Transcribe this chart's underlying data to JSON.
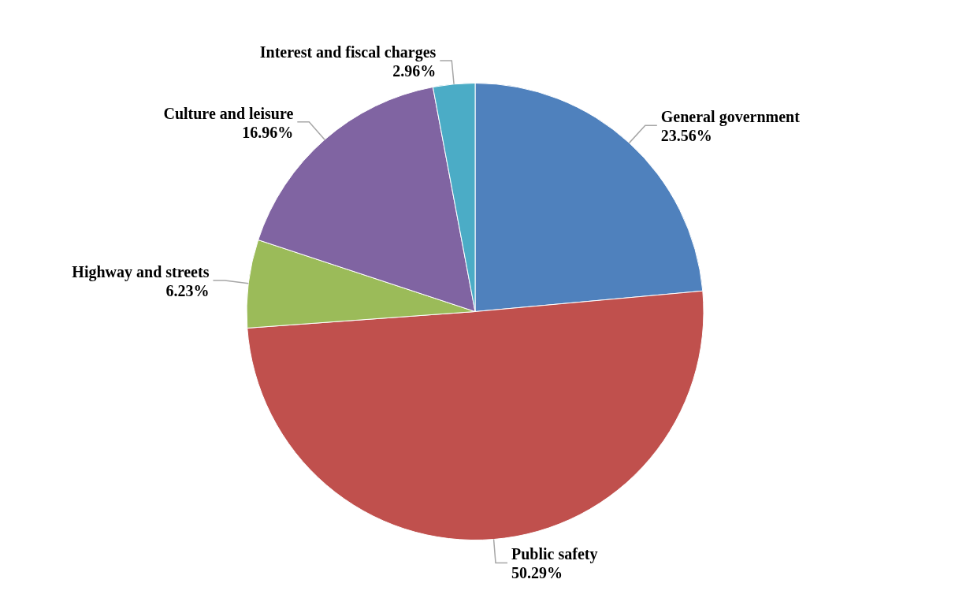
{
  "chart_data": {
    "type": "pie",
    "categories": [
      "General government",
      "Public safety",
      "Highway and streets",
      "Culture and leisure",
      "Interest and fiscal charges"
    ],
    "values": [
      23.56,
      50.29,
      6.23,
      16.96,
      2.96
    ],
    "value_labels": [
      "23.56%",
      "50.29%",
      "6.23%",
      "16.96%",
      "2.96%"
    ],
    "colors": [
      "#4f81bd",
      "#c0504d",
      "#9bbb59",
      "#8064a2",
      "#4bacc6"
    ],
    "legend": false
  }
}
